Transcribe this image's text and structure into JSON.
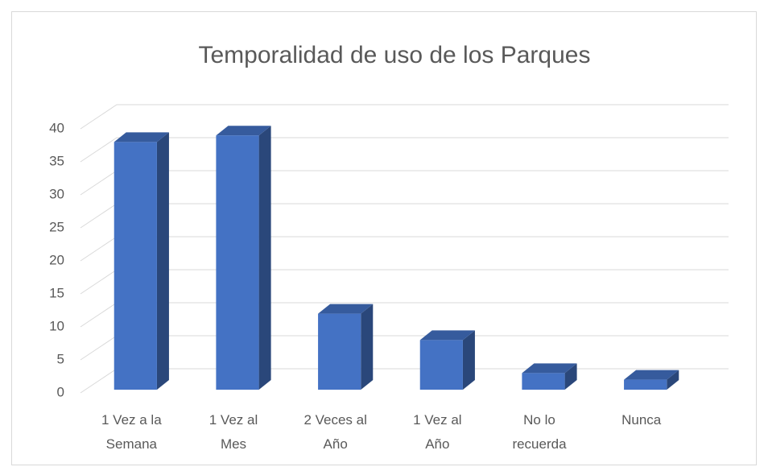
{
  "chart_data": {
    "type": "bar3d",
    "title": "Temporalidad de uso de los Parques",
    "categories": [
      "1 Vez a la Semana",
      "1 Vez al Mes",
      "2 Veces al Año",
      "1 Vez al Año",
      "No lo recuerda",
      "Nunca"
    ],
    "values": [
      38,
      39,
      12,
      8,
      3,
      2
    ],
    "color": "#4472c4",
    "ylim": [
      0,
      40
    ],
    "yticks": [
      0,
      5,
      10,
      15,
      20,
      25,
      30,
      35,
      40
    ],
    "grid": true
  }
}
